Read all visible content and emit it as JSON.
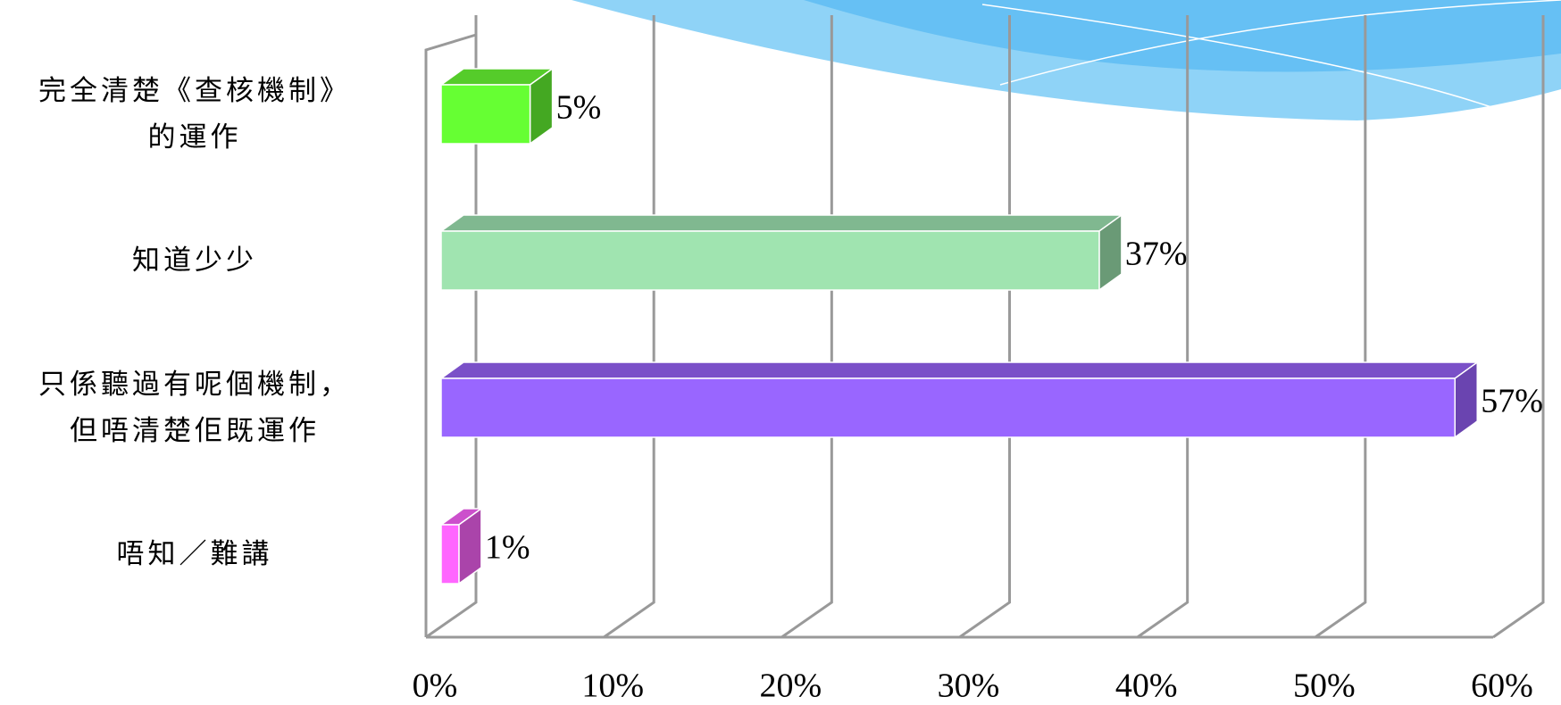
{
  "chart_data": {
    "type": "bar3d_horizontal",
    "categories": [
      "完全清楚《查核機制》\n的運作",
      "知道少少",
      "只係聽過有呢個機制，\n但唔清楚佢既運作",
      "唔知／難講"
    ],
    "series": [
      {
        "values": [
          5,
          37,
          57,
          1
        ],
        "value_labels": [
          "5%",
          "37%",
          "57%",
          "1%"
        ],
        "colors": [
          "#66ff33",
          "#a0e4b0",
          "#9966ff",
          "#ff66ff"
        ],
        "side_colors": [
          "#44a822",
          "#6a9a76",
          "#6a44b0",
          "#aa44aa"
        ],
        "top_colors": [
          "#55cc2a",
          "#80b890",
          "#7a50c8",
          "#cc50cc"
        ]
      }
    ],
    "xlim": [
      0,
      60
    ],
    "xticks": [
      {
        "value": 0,
        "label": "0%"
      },
      {
        "value": 10,
        "label": "10%"
      },
      {
        "value": 20,
        "label": "20%"
      },
      {
        "value": 30,
        "label": "30%"
      },
      {
        "value": 40,
        "label": "40%"
      },
      {
        "value": 50,
        "label": "50%"
      },
      {
        "value": 60,
        "label": "60%"
      }
    ],
    "grid": true
  }
}
